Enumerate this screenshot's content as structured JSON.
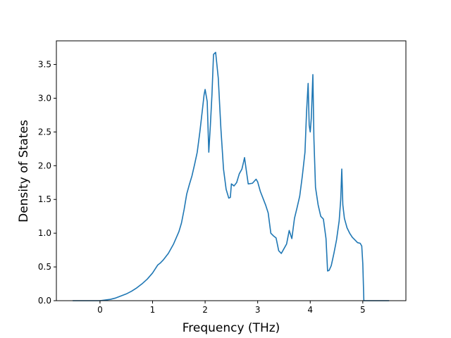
{
  "chart_data": {
    "type": "line",
    "title": "",
    "xlabel": "Frequency (THz)",
    "ylabel": "Density of States",
    "xlim": [
      -0.83,
      5.82
    ],
    "ylim": [
      0.0,
      3.85
    ],
    "xticks": [
      0,
      1,
      2,
      3,
      4,
      5
    ],
    "yticks": [
      0.0,
      0.5,
      1.0,
      1.5,
      2.0,
      2.5,
      3.0,
      3.5
    ],
    "xtick_labels": [
      "0",
      "1",
      "2",
      "3",
      "4",
      "5"
    ],
    "ytick_labels": [
      "0.0",
      "0.5",
      "1.0",
      "1.5",
      "2.0",
      "2.5",
      "3.0",
      "3.5"
    ],
    "grid": false,
    "series": [
      {
        "color": "#1f77b4",
        "x": [
          -0.52,
          0.0,
          0.1,
          0.2,
          0.3,
          0.4,
          0.5,
          0.6,
          0.7,
          0.8,
          0.9,
          1.0,
          1.05,
          1.1,
          1.15,
          1.2,
          1.3,
          1.4,
          1.5,
          1.55,
          1.6,
          1.65,
          1.7,
          1.75,
          1.8,
          1.85,
          1.9,
          1.95,
          1.98,
          2.0,
          2.04,
          2.07,
          2.1,
          2.13,
          2.16,
          2.2,
          2.25,
          2.3,
          2.35,
          2.4,
          2.45,
          2.48,
          2.5,
          2.55,
          2.6,
          2.65,
          2.7,
          2.73,
          2.75,
          2.78,
          2.82,
          2.9,
          2.97,
          3.0,
          3.05,
          3.1,
          3.15,
          3.2,
          3.25,
          3.3,
          3.35,
          3.4,
          3.45,
          3.5,
          3.55,
          3.6,
          3.65,
          3.7,
          3.75,
          3.8,
          3.85,
          3.9,
          3.93,
          3.96,
          3.98,
          4.0,
          4.02,
          4.05,
          4.07,
          4.1,
          4.15,
          4.2,
          4.25,
          4.3,
          4.33,
          4.36,
          4.4,
          4.45,
          4.5,
          4.55,
          4.58,
          4.6,
          4.62,
          4.65,
          4.7,
          4.75,
          4.8,
          4.85,
          4.9,
          4.95,
          4.98,
          5.0,
          5.02,
          5.5
        ],
        "y": [
          0.0,
          0.0,
          0.01,
          0.02,
          0.04,
          0.07,
          0.1,
          0.14,
          0.19,
          0.25,
          0.32,
          0.41,
          0.47,
          0.53,
          0.56,
          0.6,
          0.7,
          0.84,
          1.02,
          1.15,
          1.35,
          1.58,
          1.72,
          1.85,
          2.02,
          2.2,
          2.5,
          2.84,
          3.05,
          3.13,
          2.95,
          2.2,
          2.6,
          3.05,
          3.65,
          3.68,
          3.3,
          2.55,
          1.95,
          1.65,
          1.52,
          1.53,
          1.73,
          1.7,
          1.75,
          1.88,
          1.95,
          2.05,
          2.12,
          1.95,
          1.73,
          1.74,
          1.8,
          1.76,
          1.62,
          1.52,
          1.42,
          1.3,
          1.0,
          0.96,
          0.93,
          0.74,
          0.7,
          0.77,
          0.84,
          1.04,
          0.92,
          1.22,
          1.38,
          1.55,
          1.85,
          2.2,
          2.8,
          3.22,
          2.6,
          2.5,
          2.7,
          3.35,
          2.4,
          1.68,
          1.42,
          1.25,
          1.21,
          0.92,
          0.44,
          0.45,
          0.52,
          0.7,
          0.9,
          1.18,
          1.5,
          1.95,
          1.42,
          1.22,
          1.08,
          1.0,
          0.94,
          0.9,
          0.86,
          0.85,
          0.81,
          0.55,
          0.0,
          0.0
        ]
      }
    ]
  }
}
